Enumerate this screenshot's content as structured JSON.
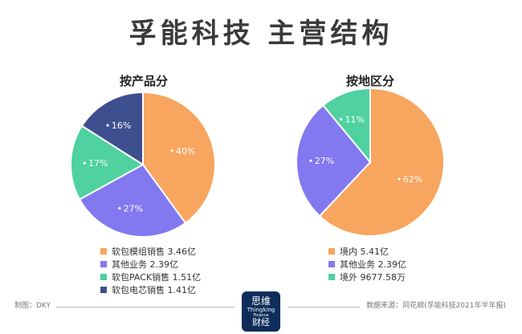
{
  "title": "孚能科技  主营结构",
  "logo": {
    "top": "思维",
    "mid": "Thingking",
    "small": "Finance",
    "bottom": "财经"
  },
  "footer": {
    "credit": "制图：DKY",
    "source": "数据来源：同花顺(孚能科技2021年半年报)"
  },
  "chart_data": [
    {
      "type": "pie",
      "title": "按产品分",
      "slices": [
        {
          "label": "软包模组销售 3.46亿",
          "value": 40,
          "pct_label": "40%",
          "color": "#f8a55f"
        },
        {
          "label": "其他业务 2.39亿",
          "value": 27,
          "pct_label": "27%",
          "color": "#8278f0"
        },
        {
          "label": "软包PACK销售 1.51亿",
          "value": 17,
          "pct_label": "17%",
          "color": "#4fd1a0"
        },
        {
          "label": "软包电芯销售 1.41亿",
          "value": 16,
          "pct_label": "16%",
          "color": "#3e4f8f"
        }
      ],
      "legend_position": "bottom"
    },
    {
      "type": "pie",
      "title": "按地区分",
      "slices": [
        {
          "label": "境内 5.41亿",
          "value": 62,
          "pct_label": "62%",
          "color": "#f8a55f"
        },
        {
          "label": "其他业务 2.39亿",
          "value": 27,
          "pct_label": "27%",
          "color": "#8278f0"
        },
        {
          "label": "境外 9677.58万",
          "value": 11,
          "pct_label": "11%",
          "color": "#4fd1a0"
        }
      ],
      "legend_position": "bottom"
    }
  ]
}
